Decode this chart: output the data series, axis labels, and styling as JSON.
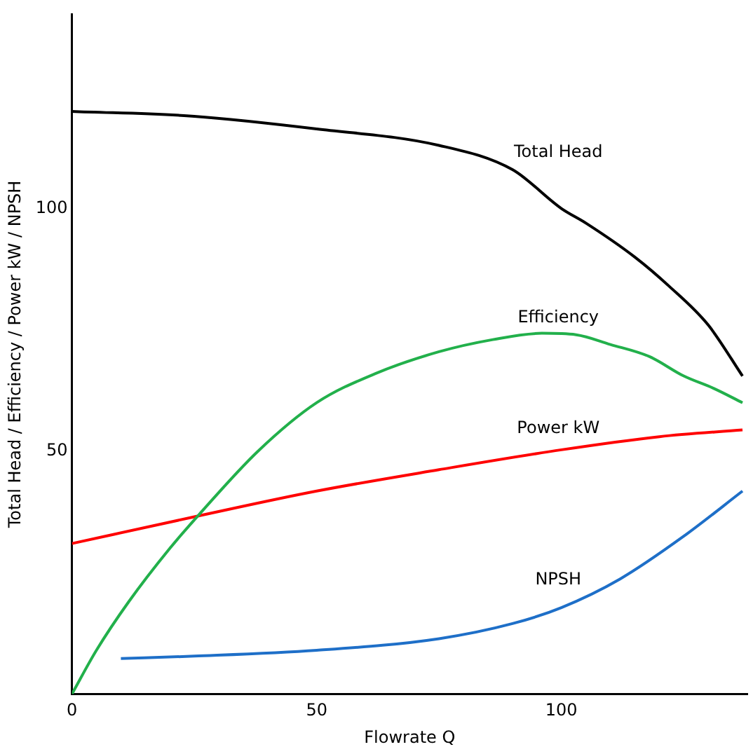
{
  "chart_data": {
    "type": "line",
    "xlabel": "Flowrate Q",
    "ylabel": "Total Head / Efficiency / Power kW / NPSH",
    "xlim": [
      0,
      138
    ],
    "ylim": [
      0,
      140
    ],
    "xticks": [
      0,
      50,
      100
    ],
    "yticks": [
      50,
      100
    ],
    "grid": false,
    "legend": false,
    "marker": "none",
    "line_style": "solid",
    "series": [
      {
        "name": "Total Head",
        "color": "#000000",
        "x": [
          0,
          25,
          50,
          75,
          90,
          100,
          105,
          115,
          122,
          130,
          137
        ],
        "values": [
          120,
          119,
          116.4,
          113,
          108,
          100,
          97,
          90,
          84,
          76,
          65.5
        ]
      },
      {
        "name": "Efficiency",
        "color": "#22b04b",
        "x": [
          0,
          5,
          11.6,
          20,
          26,
          38,
          50,
          62,
          75,
          86,
          96,
          103,
          110,
          118,
          125,
          131,
          137
        ],
        "values": [
          0,
          9,
          19,
          30,
          37,
          50,
          60,
          66,
          70.5,
          73,
          74.3,
          74,
          72,
          69.5,
          65.5,
          63,
          60
        ]
      },
      {
        "name": "Power kW",
        "color": "#ff0000",
        "x": [
          0,
          25,
          50,
          75,
          100,
          120,
          137
        ],
        "values": [
          31,
          36.5,
          41.8,
          46.2,
          50.3,
          53,
          54.4
        ]
      },
      {
        "name": "NPSH",
        "color": "#1e6fc8",
        "x": [
          10,
          25,
          50,
          75,
          90,
          100,
          112,
          125,
          137
        ],
        "values": [
          7.3,
          7.8,
          9,
          11.4,
          14.5,
          17.8,
          23.7,
          32.5,
          41.8
        ]
      }
    ]
  }
}
